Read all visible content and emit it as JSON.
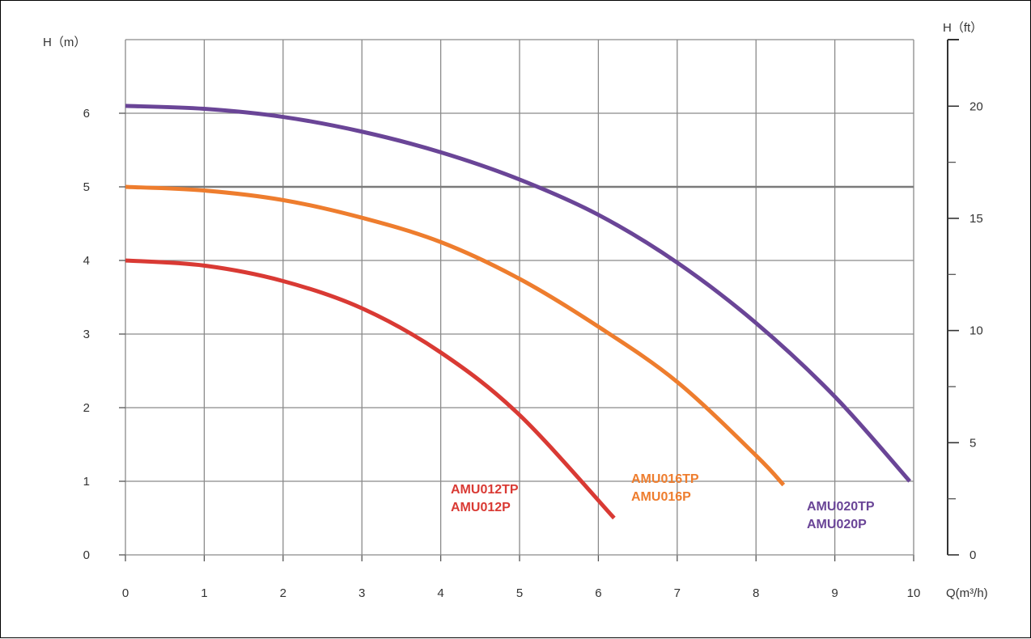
{
  "chart_data": {
    "type": "line",
    "ylabel": "H（m）",
    "y2label": "H（ft）",
    "xlabel": "Q(m³/h)",
    "xlim": [
      0,
      10
    ],
    "ylim": [
      0,
      7
    ],
    "y2lim": [
      0,
      22.966
    ],
    "x_ticks": [
      "0",
      "1",
      "2",
      "3",
      "4",
      "5",
      "6",
      "7",
      "8",
      "9",
      "10"
    ],
    "y_ticks": [
      "0",
      "1",
      "2",
      "3",
      "4",
      "5",
      "6"
    ],
    "y2_ticks": [
      "0",
      "5",
      "10",
      "15",
      "20"
    ],
    "grid": true,
    "series": [
      {
        "name": "AMU012TP AMU012P",
        "label_lines": [
          "AMU012TP",
          "AMU012P"
        ],
        "color": "#d93a34",
        "x": [
          0,
          1,
          2,
          3,
          4,
          5,
          6.2
        ],
        "y": [
          4.0,
          3.93,
          3.72,
          3.35,
          2.75,
          1.9,
          0.5
        ]
      },
      {
        "name": "AMU016TP AMU016P",
        "label_lines": [
          "AMU016TP",
          "AMU016P"
        ],
        "color": "#ee7d2e",
        "x": [
          0,
          1,
          2,
          3,
          4,
          5,
          6,
          7,
          8,
          8.35
        ],
        "y": [
          5.0,
          4.95,
          4.82,
          4.58,
          4.25,
          3.75,
          3.1,
          2.35,
          1.35,
          0.95
        ]
      },
      {
        "name": "AMU020TP AMU020P",
        "label_lines": [
          "AMU020TP",
          "AMU020P"
        ],
        "color": "#6a4597",
        "x": [
          0,
          1,
          2,
          3,
          4,
          5,
          6,
          7,
          8,
          9,
          9.95
        ],
        "y": [
          6.1,
          6.06,
          5.95,
          5.75,
          5.47,
          5.1,
          4.62,
          3.97,
          3.15,
          2.15,
          1.0
        ]
      }
    ]
  }
}
